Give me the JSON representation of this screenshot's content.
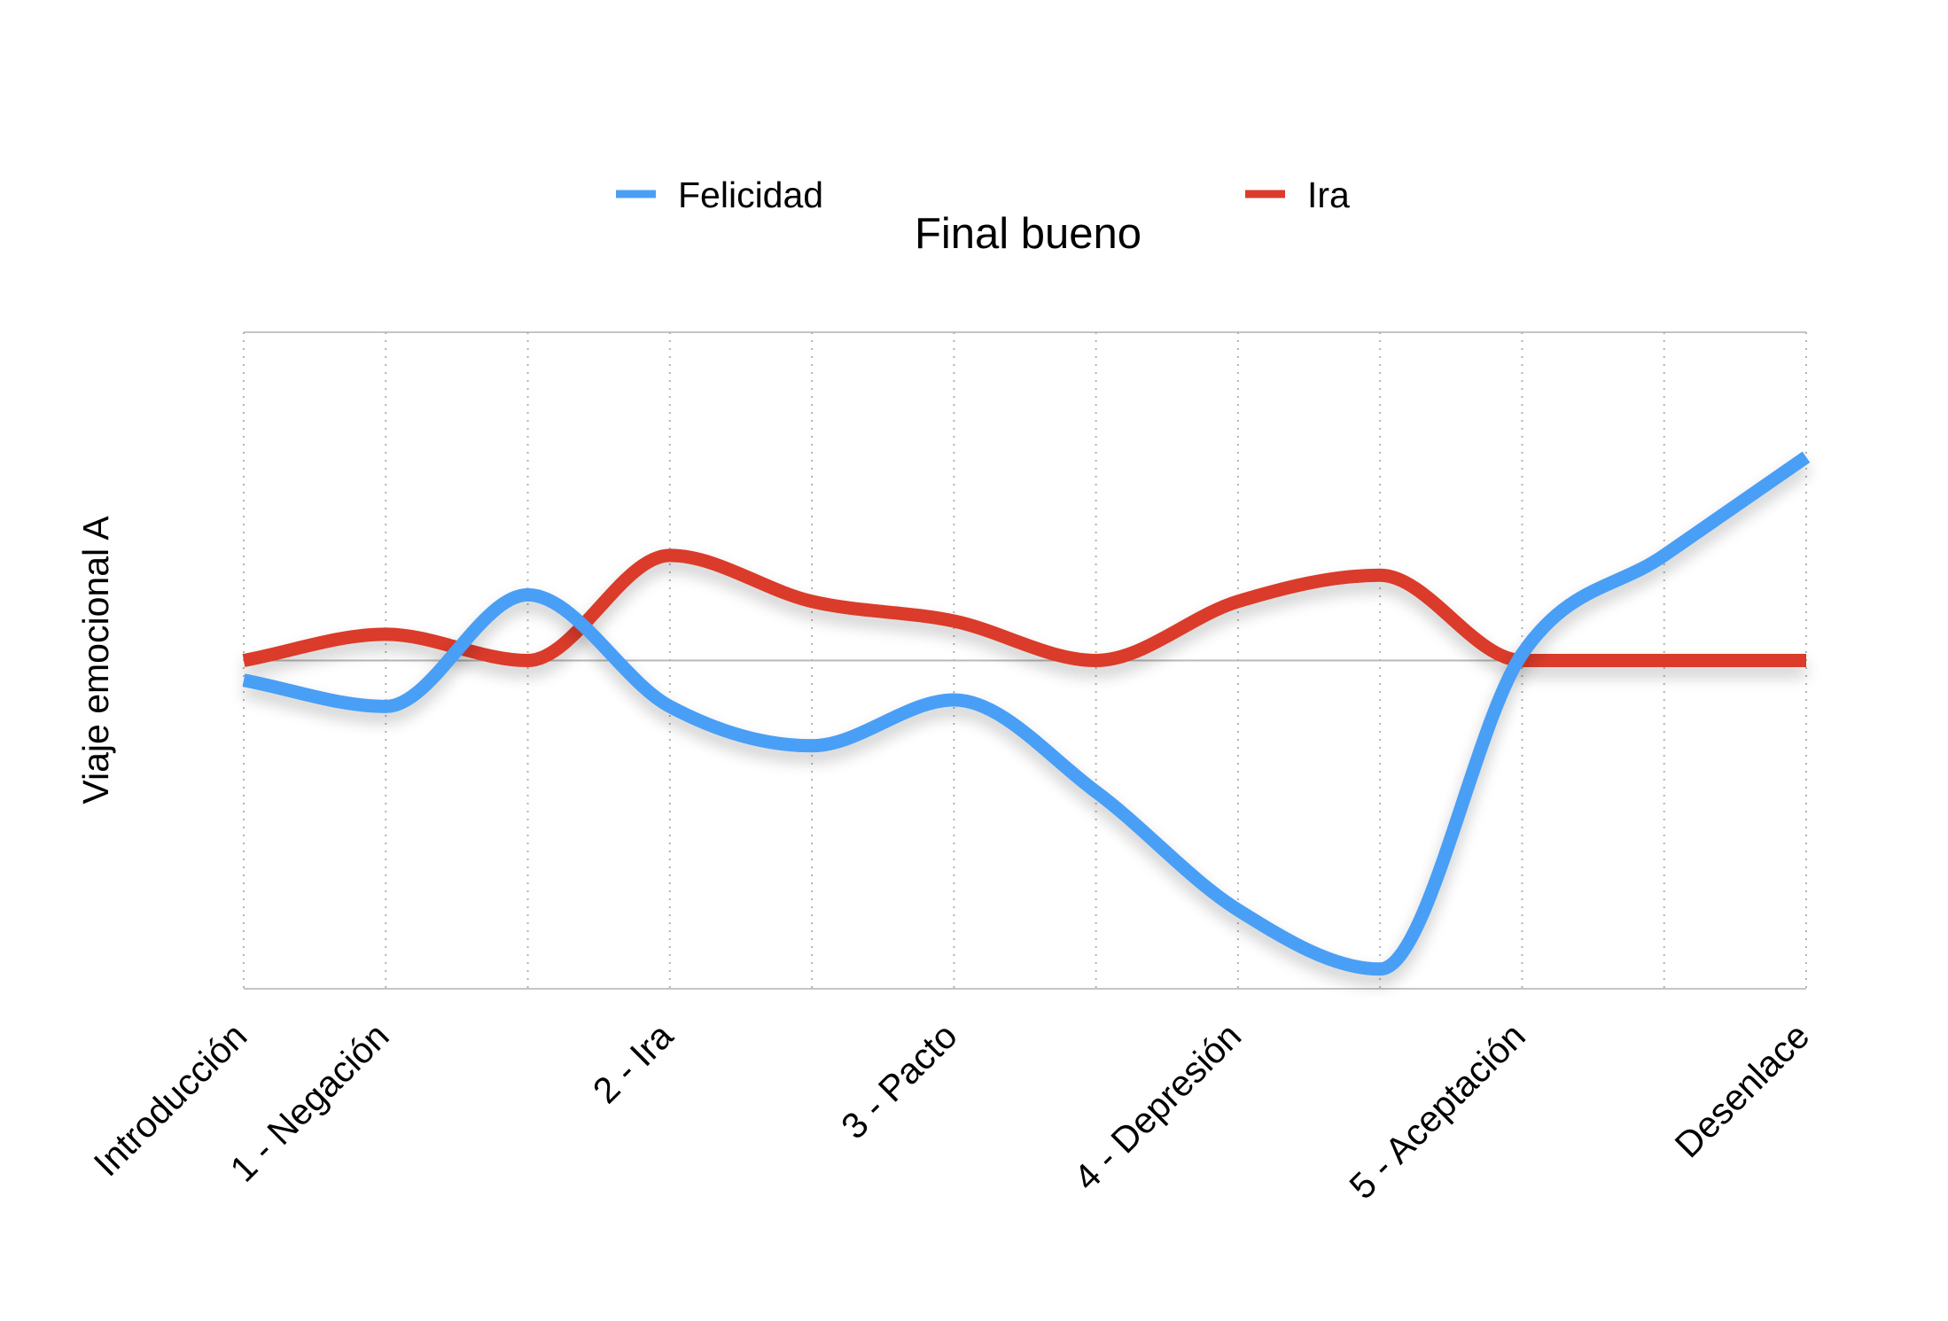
{
  "chart_data": {
    "type": "line",
    "title": "Final bueno",
    "xlabel": "",
    "ylabel": "Viaje emocional A",
    "categories": [
      "Introducción",
      "1 - Negación",
      "",
      "2 - Ira",
      "",
      "3 - Pacto",
      "",
      "4 - Depresión",
      "",
      "5 - Aceptación",
      "",
      "Desenlace"
    ],
    "ylim": [
      -5,
      5
    ],
    "smooth": true,
    "grid": {
      "vertical": true,
      "vertical_style": "dotted",
      "horizontal": false,
      "baseline": true
    },
    "legend": {
      "position": "top"
    },
    "series": [
      {
        "name": "Felicidad",
        "color": "#4A9FF5",
        "values": [
          -0.3,
          -0.7,
          1.0,
          -0.7,
          -1.3,
          -0.6,
          -2.0,
          -3.8,
          -4.7,
          0.1,
          1.6,
          3.1
        ]
      },
      {
        "name": "Ira",
        "color": "#DB3B2A",
        "values": [
          0.0,
          0.4,
          0.0,
          1.6,
          0.9,
          0.6,
          0.0,
          0.9,
          1.3,
          0.0,
          0.0,
          0.0
        ]
      }
    ]
  }
}
